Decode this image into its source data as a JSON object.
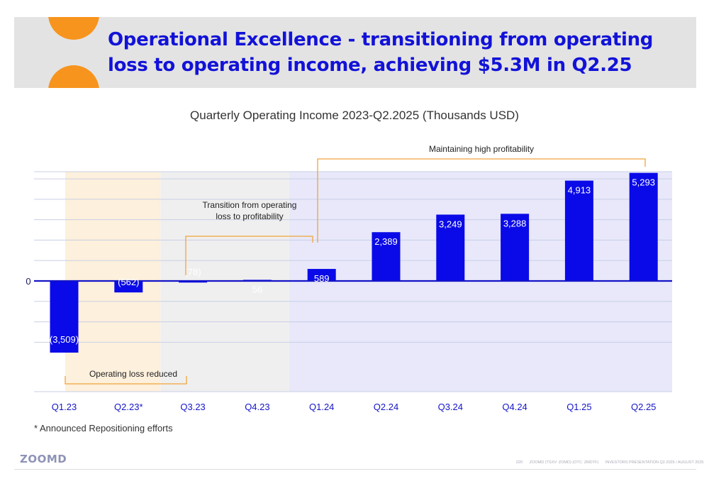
{
  "header": {
    "title": "Operational Excellence - transitioning from operating loss to operating income, achieving $5.3M in Q2.25",
    "logo_color": "#f7941d",
    "title_color": "#1212d8"
  },
  "chart_data": {
    "type": "bar",
    "title": "Quarterly Operating Income 2023-Q2.2025 (Thousands USD)",
    "categories": [
      "Q1.23",
      "Q2.23*",
      "Q3.23",
      "Q4.23",
      "Q1.24",
      "Q2.24",
      "Q3.24",
      "Q4.24",
      "Q1.25",
      "Q2.25"
    ],
    "values": [
      -3509,
      -562,
      -78,
      56,
      589,
      2389,
      3249,
      3288,
      4913,
      5293
    ],
    "labels": [
      "(3,509)",
      "(562)",
      "(78)",
      "56",
      "589",
      "2,389",
      "3,249",
      "3,288",
      "4,913",
      "5,293"
    ],
    "zero_label": "0",
    "ylim": [
      -4100,
      5350
    ],
    "grid": true,
    "bar_color": "#0a0ae8",
    "phases": [
      {
        "name": "Operating loss reduced",
        "from": "Q1.23",
        "to": "Q2.23*",
        "color": "#fdf0dc"
      },
      {
        "name": "Transition from operating loss to profitability",
        "from": "Q3.23",
        "to": "Q4.23",
        "color": "#efefef"
      },
      {
        "name": "Maintaining high profitability",
        "from": "Q1.24",
        "to": "Q2.25",
        "color": "#e8e8fa"
      }
    ],
    "annotations": {
      "loss_reduced": "Operating loss reduced",
      "transition_line1": "Transition from operating",
      "transition_line2": "loss to profitability",
      "maintaining": "Maintaining high profitability"
    }
  },
  "footnote": "* Announced Repositioning efforts",
  "footer": {
    "brand": "ZOOMD",
    "page": "020",
    "ticker": "ZOOMD (TSXV: ZOMD) (OTC: ZMDTF)",
    "presentation": "INVESTORS PRESENTATION Q2.2025 / AUGUST 2025"
  }
}
